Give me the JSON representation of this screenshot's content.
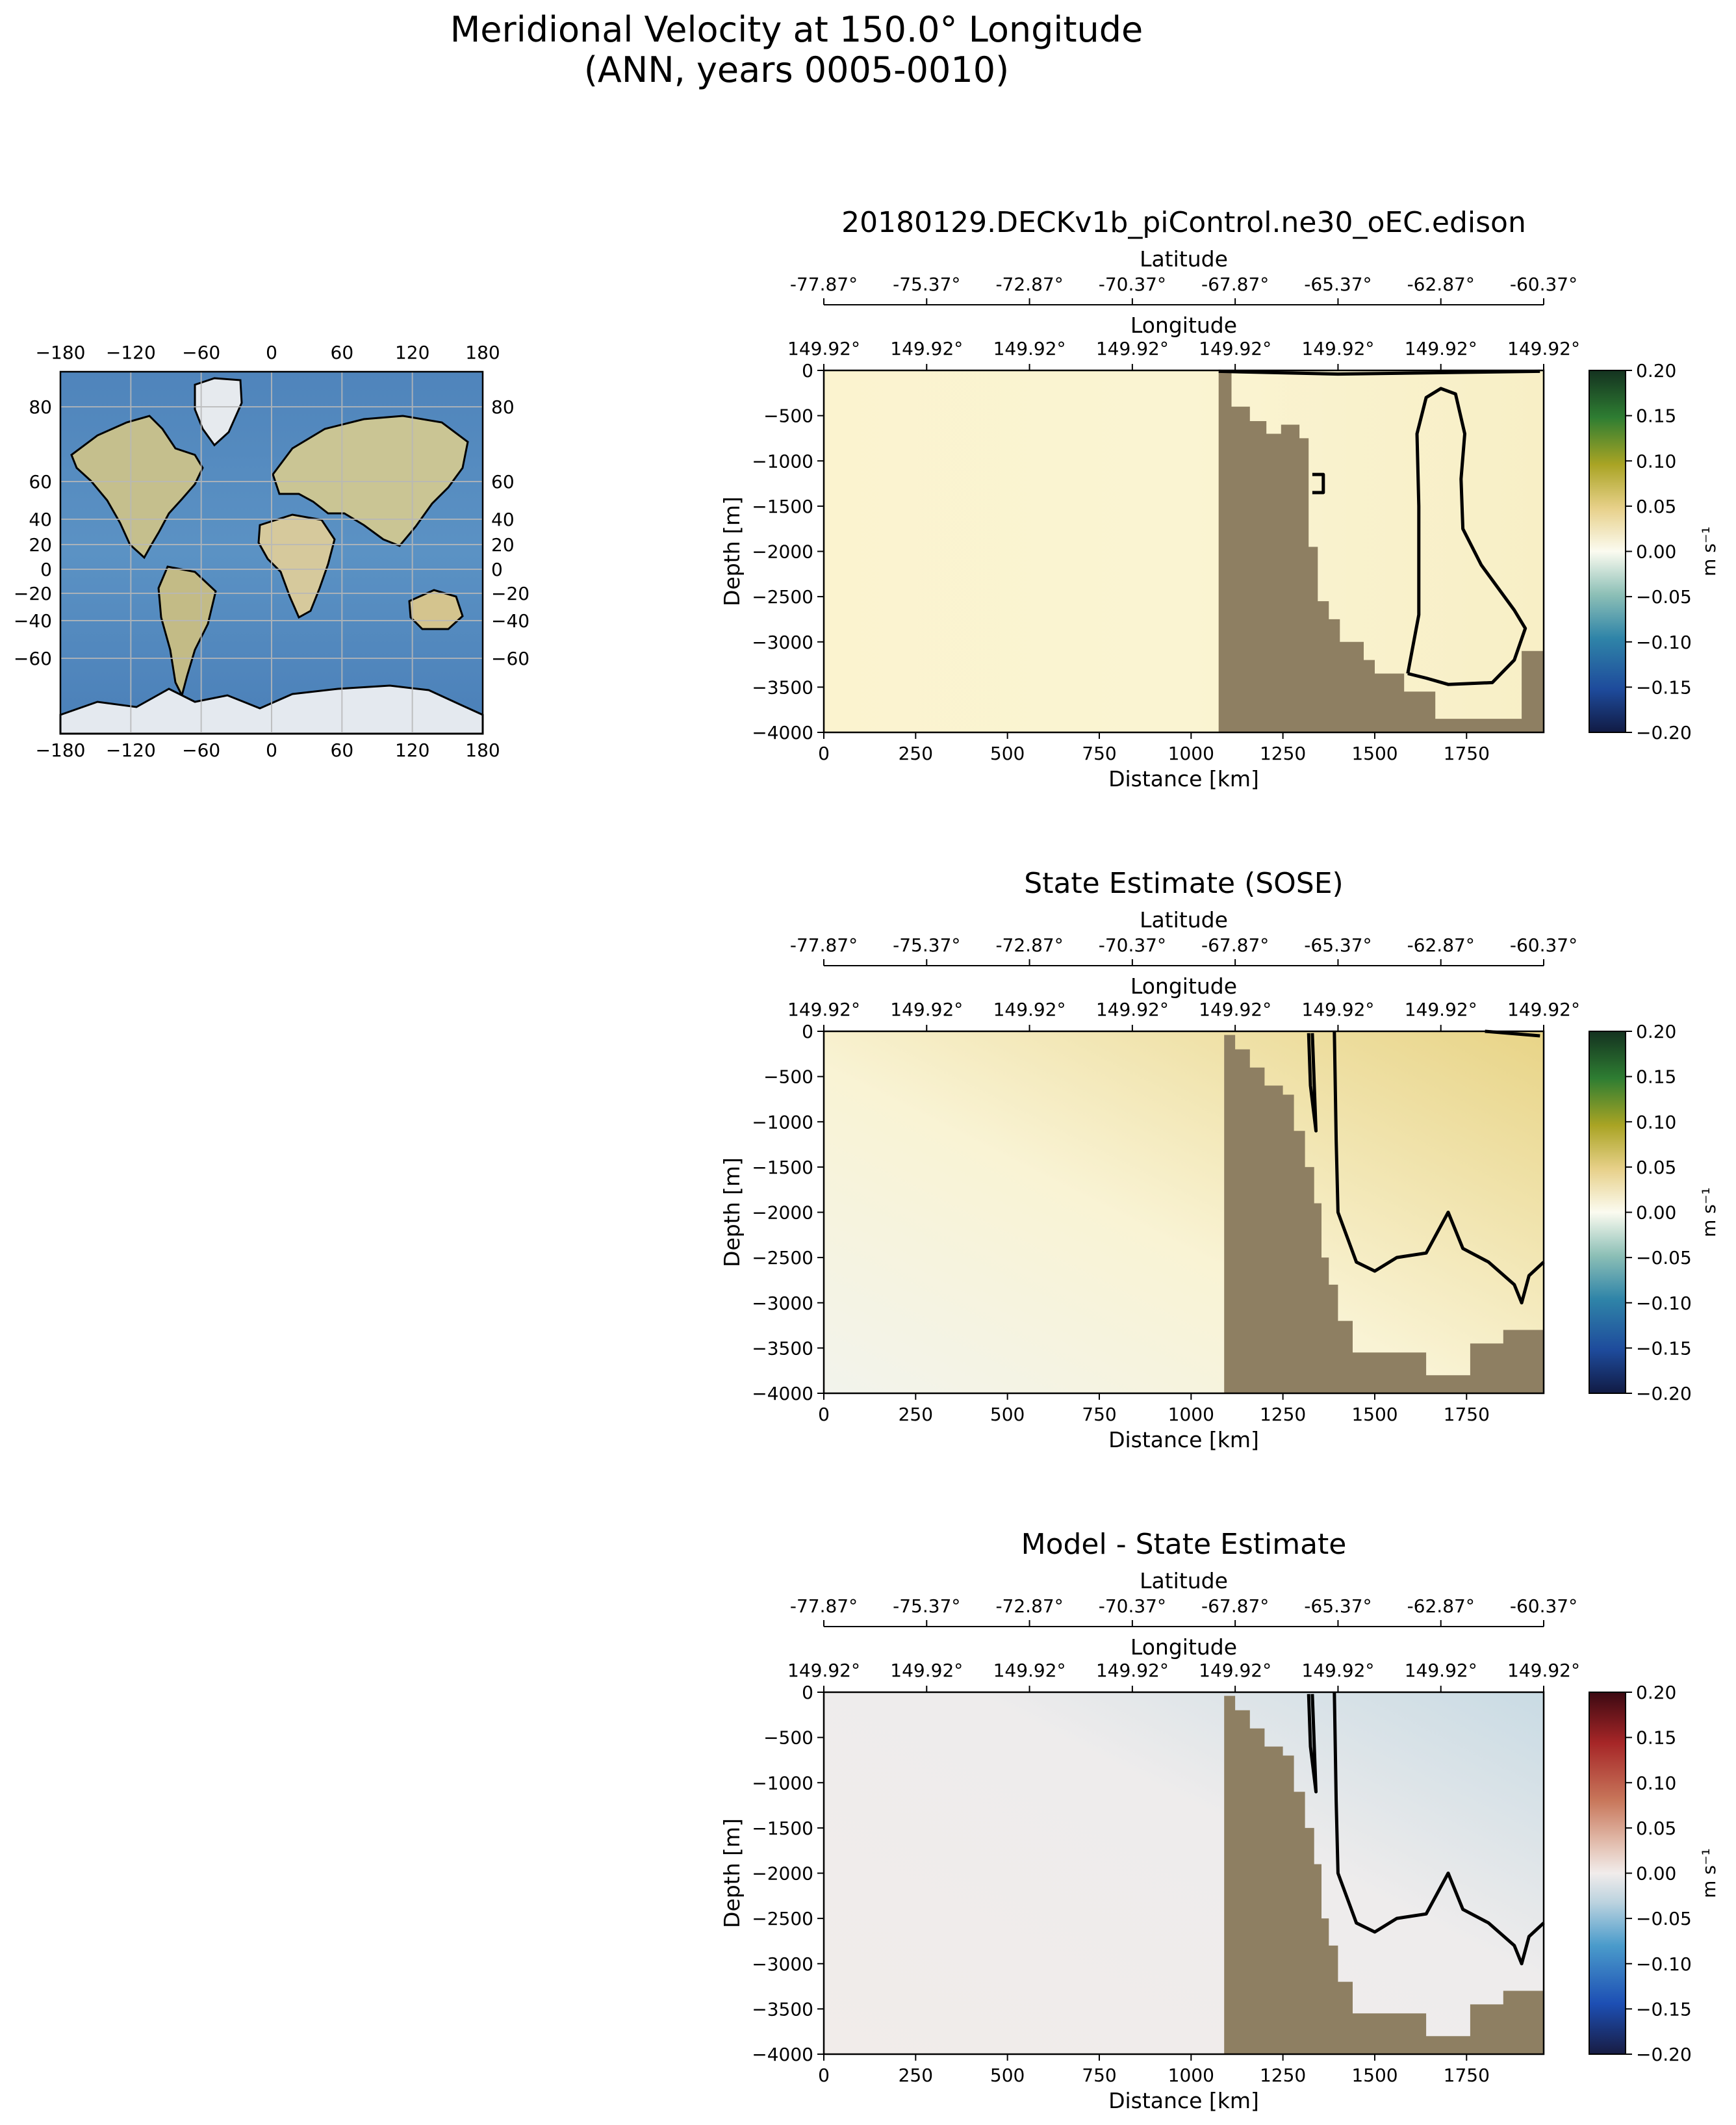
{
  "figure": {
    "title_line1": "Meridional Velocity at 150.0° Longitude",
    "title_line2": "(ANN, years 0005-0010)"
  },
  "map": {
    "lon_ticks": [
      "−180",
      "−120",
      "−60",
      "0",
      "60",
      "120",
      "180"
    ],
    "lat_ticks": [
      "80",
      "60",
      "40",
      "20",
      "0",
      "−20",
      "−40",
      "−60"
    ],
    "lat_values": [
      80,
      60,
      40,
      20,
      0,
      -20,
      -40,
      -60
    ],
    "colors": {
      "ocean": "#4a7fb8",
      "land": "#c6c08d",
      "ice": "#e4e9ef"
    }
  },
  "colors": {
    "bathymetry": "#8e7f62",
    "contour": "#000000"
  },
  "chart_data": [
    {
      "type": "heatmap",
      "title": "20180129.DECKv1b_piControl.ne30_oEC.edison",
      "xlabel": "Distance [km]",
      "ylabel": "Depth [m]",
      "top_axis_1": {
        "label": "Latitude",
        "ticks": [
          "-77.87°",
          "-75.37°",
          "-72.87°",
          "-70.37°",
          "-67.87°",
          "-65.37°",
          "-62.87°",
          "-60.37°"
        ]
      },
      "top_axis_2": {
        "label": "Longitude",
        "ticks": [
          "149.92°",
          "149.92°",
          "149.92°",
          "149.92°",
          "149.92°",
          "149.92°",
          "149.92°",
          "149.92°"
        ]
      },
      "x_ticks": [
        "0",
        "250",
        "500",
        "750",
        "1000",
        "1250",
        "1500",
        "1750"
      ],
      "y_ticks": [
        "0",
        "−500",
        "−1000",
        "−1500",
        "−2000",
        "−2500",
        "−3000",
        "−3500",
        "−4000"
      ],
      "xlim": [
        0,
        1960
      ],
      "ylim": [
        -4000,
        0
      ],
      "colorbar": {
        "label": "m s⁻¹",
        "ticks": [
          "0.20",
          "0.15",
          "0.10",
          "0.05",
          "0.00",
          "−0.05",
          "−0.10",
          "−0.15",
          "−0.20"
        ],
        "range": [
          -0.2,
          0.2
        ],
        "colormap": "green-brown-blue (delta)"
      },
      "seafloor_profile": [
        [
          0,
          -4000
        ],
        [
          1075,
          -4000
        ],
        [
          1075,
          -20
        ],
        [
          1110,
          -20
        ],
        [
          1110,
          -400
        ],
        [
          1160,
          -400
        ],
        [
          1160,
          -560
        ],
        [
          1205,
          -560
        ],
        [
          1205,
          -700
        ],
        [
          1245,
          -700
        ],
        [
          1245,
          -600
        ],
        [
          1295,
          -600
        ],
        [
          1295,
          -750
        ],
        [
          1320,
          -750
        ],
        [
          1320,
          -1950
        ],
        [
          1345,
          -1950
        ],
        [
          1345,
          -2550
        ],
        [
          1375,
          -2550
        ],
        [
          1375,
          -2750
        ],
        [
          1405,
          -2750
        ],
        [
          1405,
          -3000
        ],
        [
          1470,
          -3000
        ],
        [
          1470,
          -3200
        ],
        [
          1500,
          -3200
        ],
        [
          1500,
          -3350
        ],
        [
          1580,
          -3350
        ],
        [
          1580,
          -3550
        ],
        [
          1665,
          -3550
        ],
        [
          1665,
          -3850
        ],
        [
          1900,
          -3850
        ],
        [
          1900,
          -3100
        ],
        [
          1960,
          -3100
        ],
        [
          1960,
          -4000
        ]
      ],
      "contours_zero": [
        [
          [
            1075,
            -10
          ],
          [
            1400,
            -40
          ],
          [
            1950,
            -10
          ]
        ],
        [
          [
            1590,
            -3350
          ],
          [
            1620,
            -2700
          ],
          [
            1620,
            -1500
          ],
          [
            1615,
            -700
          ],
          [
            1640,
            -300
          ],
          [
            1680,
            -200
          ],
          [
            1720,
            -260
          ],
          [
            1745,
            -700
          ],
          [
            1735,
            -1200
          ],
          [
            1740,
            -1750
          ],
          [
            1790,
            -2150
          ],
          [
            1880,
            -2650
          ],
          [
            1910,
            -2850
          ],
          [
            1880,
            -3200
          ],
          [
            1820,
            -3450
          ],
          [
            1700,
            -3470
          ],
          [
            1640,
            -3400
          ],
          [
            1590,
            -3350
          ]
        ],
        [
          [
            1330,
            -1150
          ],
          [
            1360,
            -1150
          ],
          [
            1360,
            -1350
          ],
          [
            1330,
            -1350
          ]
        ]
      ],
      "field_tint": "pale yellow (about +0.01 m s⁻¹); near zero in the deep core east of 1600 km"
    },
    {
      "type": "heatmap",
      "title": "State Estimate (SOSE)",
      "xlabel": "Distance [km]",
      "ylabel": "Depth [m]",
      "top_axis_1": {
        "label": "Latitude",
        "ticks": [
          "-77.87°",
          "-75.37°",
          "-72.87°",
          "-70.37°",
          "-67.87°",
          "-65.37°",
          "-62.87°",
          "-60.37°"
        ]
      },
      "top_axis_2": {
        "label": "Longitude",
        "ticks": [
          "149.92°",
          "149.92°",
          "149.92°",
          "149.92°",
          "149.92°",
          "149.92°",
          "149.92°",
          "149.92°"
        ]
      },
      "x_ticks": [
        "0",
        "250",
        "500",
        "750",
        "1000",
        "1250",
        "1500",
        "1750"
      ],
      "y_ticks": [
        "0",
        "−500",
        "−1000",
        "−1500",
        "−2000",
        "−2500",
        "−3000",
        "−3500",
        "−4000"
      ],
      "xlim": [
        0,
        1960
      ],
      "ylim": [
        -4000,
        0
      ],
      "colorbar": {
        "label": "m s⁻¹",
        "ticks": [
          "0.20",
          "0.15",
          "0.10",
          "0.05",
          "0.00",
          "−0.05",
          "−0.10",
          "−0.15",
          "−0.20"
        ],
        "range": [
          -0.2,
          0.2
        ],
        "colormap": "green-brown-blue (delta)"
      },
      "seafloor_profile": [
        [
          0,
          -4000
        ],
        [
          1090,
          -4000
        ],
        [
          1090,
          -40
        ],
        [
          1120,
          -40
        ],
        [
          1120,
          -200
        ],
        [
          1160,
          -200
        ],
        [
          1160,
          -400
        ],
        [
          1200,
          -400
        ],
        [
          1200,
          -600
        ],
        [
          1250,
          -600
        ],
        [
          1250,
          -700
        ],
        [
          1280,
          -700
        ],
        [
          1280,
          -1100
        ],
        [
          1310,
          -1100
        ],
        [
          1310,
          -1500
        ],
        [
          1335,
          -1500
        ],
        [
          1335,
          -1900
        ],
        [
          1355,
          -1900
        ],
        [
          1355,
          -2500
        ],
        [
          1375,
          -2500
        ],
        [
          1375,
          -2800
        ],
        [
          1400,
          -2800
        ],
        [
          1400,
          -3200
        ],
        [
          1440,
          -3200
        ],
        [
          1440,
          -3550
        ],
        [
          1640,
          -3550
        ],
        [
          1640,
          -3800
        ],
        [
          1760,
          -3800
        ],
        [
          1760,
          -3450
        ],
        [
          1850,
          -3450
        ],
        [
          1850,
          -3300
        ],
        [
          1960,
          -3300
        ],
        [
          1960,
          -4000
        ]
      ],
      "contours_zero": [
        [
          [
            1320,
            -20
          ],
          [
            1325,
            -600
          ],
          [
            1340,
            -1100
          ],
          [
            1330,
            -20
          ]
        ],
        [
          [
            1390,
            0
          ],
          [
            1395,
            -1200
          ],
          [
            1400,
            -2000
          ],
          [
            1450,
            -2550
          ],
          [
            1500,
            -2650
          ],
          [
            1560,
            -2500
          ],
          [
            1640,
            -2450
          ],
          [
            1700,
            -2000
          ],
          [
            1740,
            -2400
          ],
          [
            1810,
            -2550
          ],
          [
            1880,
            -2800
          ],
          [
            1900,
            -3000
          ],
          [
            1920,
            -2700
          ],
          [
            1960,
            -2550
          ]
        ],
        [
          [
            1800,
            0
          ],
          [
            1950,
            -50
          ]
        ]
      ],
      "field_tint": "pale yellow to light tan (about +0.01 to +0.03 m s⁻¹), increasing toward the northern surface; near zero below 2500 m"
    },
    {
      "type": "heatmap",
      "title": "Model - State Estimate",
      "xlabel": "Distance [km]",
      "ylabel": "Depth [m]",
      "top_axis_1": {
        "label": "Latitude",
        "ticks": [
          "-77.87°",
          "-75.37°",
          "-72.87°",
          "-70.37°",
          "-67.87°",
          "-65.37°",
          "-62.87°",
          "-60.37°"
        ]
      },
      "top_axis_2": {
        "label": "Longitude",
        "ticks": [
          "149.92°",
          "149.92°",
          "149.92°",
          "149.92°",
          "149.92°",
          "149.92°",
          "149.92°",
          "149.92°"
        ]
      },
      "x_ticks": [
        "0",
        "250",
        "500",
        "750",
        "1000",
        "1250",
        "1500",
        "1750"
      ],
      "y_ticks": [
        "0",
        "−500",
        "−1000",
        "−1500",
        "−2000",
        "−2500",
        "−3000",
        "−3500",
        "−4000"
      ],
      "xlim": [
        0,
        1960
      ],
      "ylim": [
        -4000,
        0
      ],
      "colorbar": {
        "label": "m s⁻¹",
        "ticks": [
          "0.20",
          "0.15",
          "0.10",
          "0.05",
          "0.00",
          "−0.05",
          "−0.10",
          "−0.15",
          "−0.20"
        ],
        "range": [
          -0.2,
          0.2
        ],
        "colormap": "blue-white-red (balance)"
      },
      "seafloor_profile": [
        [
          0,
          -4000
        ],
        [
          1090,
          -4000
        ],
        [
          1090,
          -40
        ],
        [
          1120,
          -40
        ],
        [
          1120,
          -200
        ],
        [
          1160,
          -200
        ],
        [
          1160,
          -400
        ],
        [
          1200,
          -400
        ],
        [
          1200,
          -600
        ],
        [
          1250,
          -600
        ],
        [
          1250,
          -700
        ],
        [
          1280,
          -700
        ],
        [
          1280,
          -1100
        ],
        [
          1310,
          -1100
        ],
        [
          1310,
          -1500
        ],
        [
          1335,
          -1500
        ],
        [
          1335,
          -1900
        ],
        [
          1355,
          -1900
        ],
        [
          1355,
          -2500
        ],
        [
          1375,
          -2500
        ],
        [
          1375,
          -2800
        ],
        [
          1400,
          -2800
        ],
        [
          1400,
          -3200
        ],
        [
          1440,
          -3200
        ],
        [
          1440,
          -3550
        ],
        [
          1640,
          -3550
        ],
        [
          1640,
          -3800
        ],
        [
          1760,
          -3800
        ],
        [
          1760,
          -3450
        ],
        [
          1850,
          -3450
        ],
        [
          1850,
          -3300
        ],
        [
          1960,
          -3300
        ],
        [
          1960,
          -4000
        ]
      ],
      "contours_zero": [
        [
          [
            1320,
            -20
          ],
          [
            1325,
            -600
          ],
          [
            1340,
            -1100
          ],
          [
            1330,
            -20
          ]
        ],
        [
          [
            1390,
            0
          ],
          [
            1395,
            -1200
          ],
          [
            1400,
            -2000
          ],
          [
            1450,
            -2550
          ],
          [
            1500,
            -2650
          ],
          [
            1560,
            -2500
          ],
          [
            1640,
            -2450
          ],
          [
            1700,
            -2000
          ],
          [
            1740,
            -2400
          ],
          [
            1810,
            -2550
          ],
          [
            1880,
            -2800
          ],
          [
            1900,
            -3000
          ],
          [
            1920,
            -2700
          ],
          [
            1960,
            -2550
          ]
        ]
      ],
      "field_tint": "near zero (about −0.01 to +0.01 m s⁻¹); faint pink near 1350 km, faint blue toward the northern surface"
    }
  ]
}
